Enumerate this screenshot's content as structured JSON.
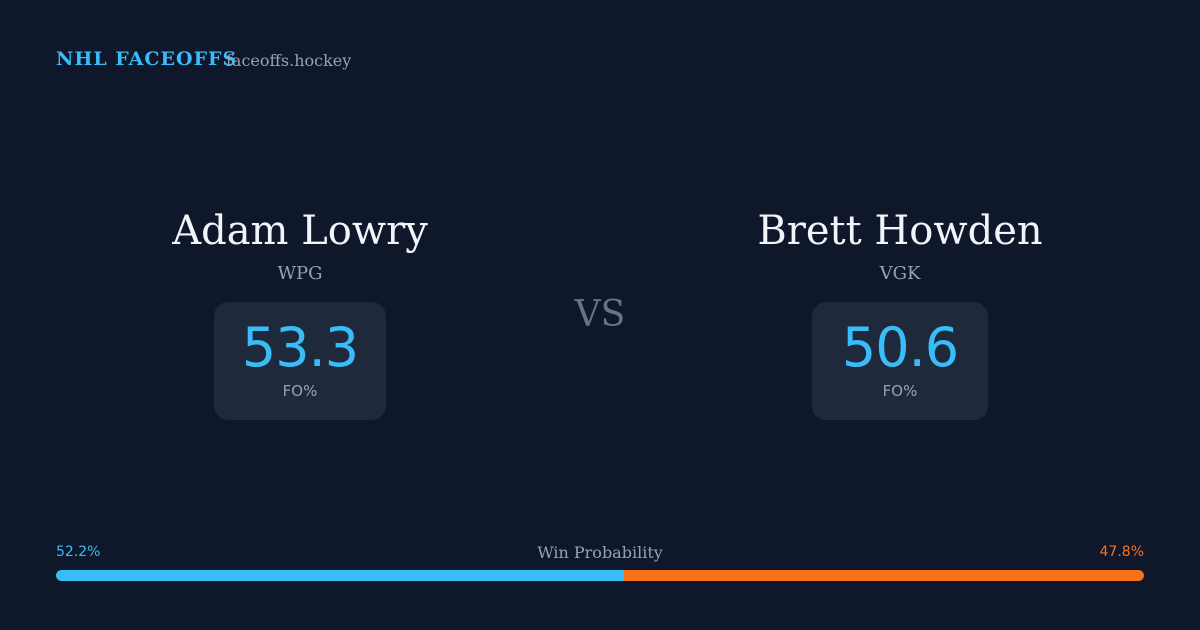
{
  "header": {
    "title": "NHL FACEOFFS",
    "site": "faceoffs.hockey"
  },
  "players": [
    {
      "name": "Adam Lowry",
      "team": "WPG",
      "fo_pct": 53.3,
      "fo_label": "FO%"
    },
    {
      "name": "Brett Howden",
      "team": "VGK",
      "fo_pct": 50.6,
      "fo_label": "FO%"
    }
  ],
  "vs": "VS",
  "win_probability": {
    "label": "Win Probability",
    "values": [
      52.2,
      47.8
    ],
    "value_labels": [
      "52.2%",
      "47.8%"
    ],
    "colors": [
      "#38bdf8",
      "#f97316"
    ]
  }
}
